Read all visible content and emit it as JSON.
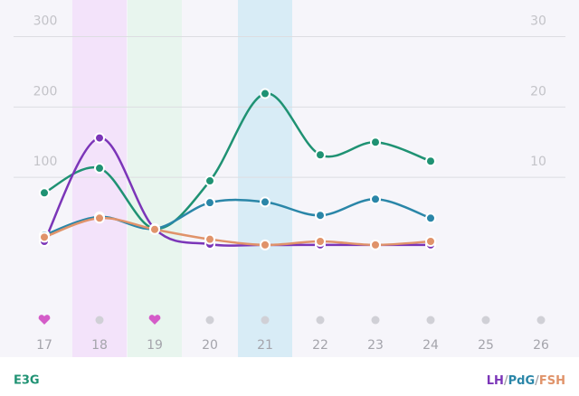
{
  "chart_data": {
    "type": "line",
    "categories": [
      "17",
      "18",
      "19",
      "20",
      "21",
      "22",
      "23",
      "24",
      "25",
      "26"
    ],
    "series": [
      {
        "name": "E3G",
        "color": "#1f9273",
        "axis": "y",
        "values": [
          78,
          113,
          27,
          95,
          219,
          132,
          150,
          123,
          null,
          null
        ]
      },
      {
        "name": "LH",
        "color": "#7b35b8",
        "axis": "y2",
        "values": [
          0.9,
          15.6,
          2.7,
          0.5,
          0.4,
          0.4,
          0.4,
          0.4,
          null,
          null
        ]
      },
      {
        "name": "PdG",
        "color": "#2a86a8",
        "axis": "y2",
        "values": [
          1.8,
          4.4,
          2.7,
          6.4,
          6.5,
          4.6,
          6.9,
          4.2,
          null,
          null
        ]
      },
      {
        "name": "FSH",
        "color": "#e0936a",
        "axis": "y2",
        "values": [
          1.5,
          4.2,
          2.6,
          1.2,
          0.4,
          0.9,
          0.4,
          0.9,
          null,
          null
        ]
      }
    ],
    "legend_separator": "/",
    "ylim": [
      0,
      352
    ],
    "yticks": [
      100,
      200,
      300
    ],
    "y2lim": [
      0,
      35.2
    ],
    "y2ticks": [
      10,
      20,
      30
    ],
    "grid": true,
    "highlights": [
      {
        "category": 1,
        "color": "#f3e3fa"
      },
      {
        "category": 2,
        "color": "#e8f5ee"
      },
      {
        "category": 4,
        "color": "#d8ecf6"
      }
    ],
    "day_icons": [
      "heart",
      "dot",
      "heart",
      "dot",
      "dot",
      "dot",
      "dot",
      "dot",
      "dot",
      "dot"
    ],
    "heart_color": "#d45cc8",
    "dot_color": "#d0d0d6"
  }
}
